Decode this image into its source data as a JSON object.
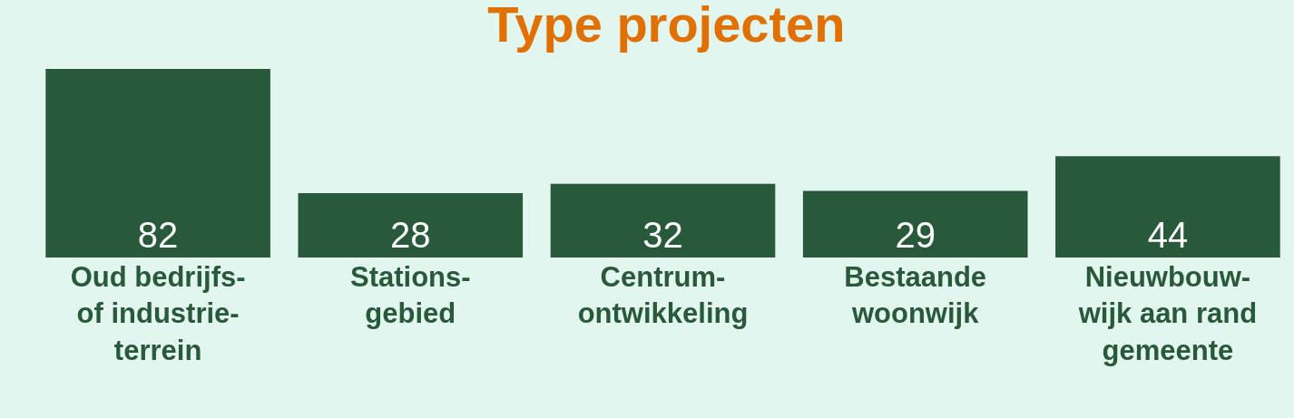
{
  "chart_data": {
    "type": "bar",
    "title": "Type projecten",
    "categories": [
      "Oud bedrijfs-\nof industrie-\nterrein",
      "Stations-\ngebied",
      "Centrum-\nontwikkeling",
      "Bestaande\nwoonwijk",
      "Nieuwbouw-\nwijk aan rand\ngemeente"
    ],
    "values": [
      82,
      28,
      32,
      29,
      44
    ],
    "color": "#27593a",
    "data_labels": true,
    "grid": false,
    "legend": false
  }
}
